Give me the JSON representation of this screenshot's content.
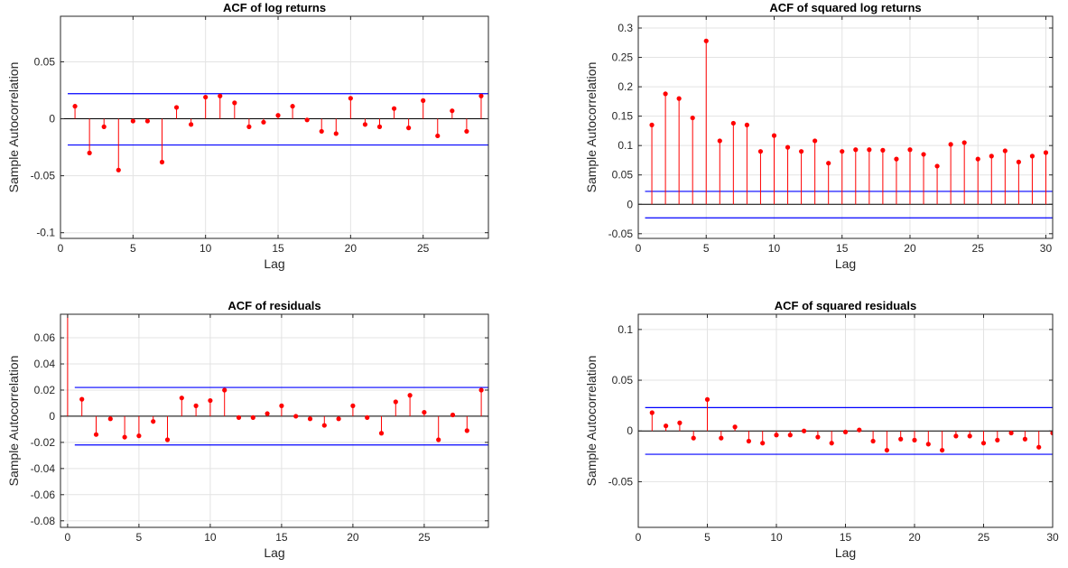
{
  "colors": {
    "stem": "#ff0000",
    "bound": "#0000ff",
    "grid": "#e3e3e3",
    "axis": "#262626",
    "zero": "#000000"
  },
  "chart_data": [
    {
      "type": "stem",
      "title": "ACF of log returns",
      "xlabel": "Lag",
      "ylabel": "Sample Autocorrelation",
      "xlim": [
        0,
        29.5
      ],
      "ylim": [
        -0.105,
        0.09
      ],
      "xticks": [
        0,
        5,
        10,
        15,
        20,
        25
      ],
      "xtick_labels": [
        "0",
        "5",
        "10",
        "15",
        "20",
        "25"
      ],
      "yticks": [
        -0.1,
        -0.05,
        0,
        0.05
      ],
      "ytick_labels": [
        "-0.1",
        "-0.05",
        "0",
        "0.05"
      ],
      "grid": true,
      "lag0_value": 1,
      "lags": [
        1,
        2,
        3,
        4,
        5,
        6,
        7,
        8,
        9,
        10,
        11,
        12,
        13,
        14,
        15,
        16,
        17,
        18,
        19,
        20,
        21,
        22,
        23,
        24,
        25,
        26,
        27,
        28,
        29
      ],
      "values": [
        0.011,
        -0.03,
        -0.007,
        -0.045,
        -0.002,
        -0.002,
        -0.038,
        0.01,
        -0.005,
        0.019,
        0.02,
        0.014,
        -0.007,
        -0.003,
        0.003,
        0.011,
        -0.001,
        -0.011,
        -0.013,
        0.018,
        -0.005,
        -0.007,
        0.009,
        -0.008,
        0.016,
        -0.015,
        0.007,
        -0.011,
        0.02
      ],
      "bounds": [
        0.022,
        -0.023
      ]
    },
    {
      "type": "stem",
      "title": "ACF of squared log returns",
      "xlabel": "Lag",
      "ylabel": "Sample Autocorrelation",
      "xlim": [
        0,
        30.5
      ],
      "ylim": [
        -0.058,
        0.32
      ],
      "xticks": [
        0,
        5,
        10,
        15,
        20,
        25,
        30
      ],
      "xtick_labels": [
        "0",
        "5",
        "10",
        "15",
        "20",
        "25",
        "30"
      ],
      "yticks": [
        -0.05,
        0,
        0.05,
        0.1,
        0.15,
        0.2,
        0.25,
        0.3
      ],
      "ytick_labels": [
        "-0.05",
        "0",
        "0.05",
        "0.1",
        "0.15",
        "0.2",
        "0.25",
        "0.3"
      ],
      "grid": true,
      "lag0_value": 1,
      "lags": [
        1,
        2,
        3,
        4,
        5,
        6,
        7,
        8,
        9,
        10,
        11,
        12,
        13,
        14,
        15,
        16,
        17,
        18,
        19,
        20,
        21,
        22,
        23,
        24,
        25,
        26,
        27,
        28,
        29,
        30
      ],
      "values": [
        0.135,
        0.188,
        0.18,
        0.147,
        0.278,
        0.108,
        0.138,
        0.135,
        0.09,
        0.117,
        0.097,
        0.09,
        0.108,
        0.07,
        0.09,
        0.093,
        0.093,
        0.092,
        0.077,
        0.093,
        0.085,
        0.065,
        0.102,
        0.105,
        0.077,
        0.082,
        0.091,
        0.072,
        0.082,
        0.088
      ],
      "bounds": [
        0.022,
        -0.023
      ]
    },
    {
      "type": "stem",
      "title": "ACF of residuals",
      "xlabel": "Lag",
      "ylabel": "Sample Autocorrelation",
      "xlim": [
        -0.5,
        29.5
      ],
      "ylim": [
        -0.085,
        0.078
      ],
      "xticks": [
        0,
        5,
        10,
        15,
        20,
        25
      ],
      "xtick_labels": [
        "0",
        "5",
        "10",
        "15",
        "20",
        "25"
      ],
      "yticks": [
        -0.08,
        -0.06,
        -0.04,
        -0.02,
        0,
        0.02,
        0.04,
        0.06
      ],
      "ytick_labels": [
        "-0.08",
        "-0.06",
        "-0.04",
        "-0.02",
        "0",
        "0.02",
        "0.04",
        "0.06"
      ],
      "grid": true,
      "lag0_value": 1,
      "lags": [
        1,
        2,
        3,
        4,
        5,
        6,
        7,
        8,
        9,
        10,
        11,
        12,
        13,
        14,
        15,
        16,
        17,
        18,
        19,
        20,
        21,
        22,
        23,
        24,
        25,
        26,
        27,
        28,
        29
      ],
      "values": [
        0.013,
        -0.014,
        -0.002,
        -0.016,
        -0.015,
        -0.004,
        -0.018,
        0.014,
        0.008,
        0.012,
        0.02,
        -0.001,
        -0.001,
        0.002,
        0.008,
        0.0,
        -0.002,
        -0.007,
        -0.002,
        0.008,
        -0.001,
        -0.013,
        0.011,
        0.016,
        0.003,
        -0.018,
        0.001,
        -0.011,
        0.02
      ],
      "bounds": [
        0.022,
        -0.022
      ]
    },
    {
      "type": "stem",
      "title": "ACF of squared residuals",
      "xlabel": "Lag",
      "ylabel": "Sample Autocorrelation",
      "xlim": [
        0,
        30
      ],
      "ylim": [
        -0.095,
        0.115
      ],
      "xticks": [
        0,
        5,
        10,
        15,
        20,
        25,
        30
      ],
      "xtick_labels": [
        "0",
        "5",
        "10",
        "15",
        "20",
        "25",
        "30"
      ],
      "yticks": [
        -0.05,
        0,
        0.05,
        0.1
      ],
      "ytick_labels": [
        "-0.05",
        "0",
        "0.05",
        "0.1"
      ],
      "grid": true,
      "lag0_value": 1,
      "lags": [
        1,
        2,
        3,
        4,
        5,
        6,
        7,
        8,
        9,
        10,
        11,
        12,
        13,
        14,
        15,
        16,
        17,
        18,
        19,
        20,
        21,
        22,
        23,
        24,
        25,
        26,
        27,
        28,
        29,
        30
      ],
      "values": [
        0.018,
        0.005,
        0.008,
        -0.007,
        0.031,
        -0.007,
        0.004,
        -0.01,
        -0.012,
        -0.004,
        -0.004,
        0.0,
        -0.006,
        -0.012,
        -0.001,
        0.001,
        -0.01,
        -0.019,
        -0.008,
        -0.009,
        -0.013,
        -0.019,
        -0.005,
        -0.005,
        -0.012,
        -0.009,
        -0.002,
        -0.008,
        -0.016,
        -0.002
      ],
      "bounds": [
        0.023,
        -0.023
      ]
    }
  ]
}
